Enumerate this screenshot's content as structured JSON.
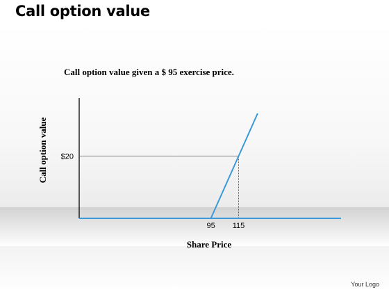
{
  "slide": {
    "title": "Call option value",
    "footer_logo": "Your Logo"
  },
  "chart_data": {
    "type": "line",
    "title": "Call option value given a $ 95 exercise price.",
    "xlabel": "Share Price",
    "ylabel": "Call option value",
    "x_ticks": [
      {
        "value": 95,
        "label": "95"
      },
      {
        "value": 115,
        "label": "115"
      }
    ],
    "y_ticks": [
      {
        "value": 20,
        "label": "$20"
      }
    ],
    "series": [
      {
        "color": "#3a9ad9",
        "points": [
          {
            "x": 95,
            "y": 0
          },
          {
            "x": 115,
            "y": 20
          },
          {
            "x": 128.7,
            "y": 33.7
          }
        ]
      }
    ],
    "baseline": {
      "x_min": 0,
      "x_max": 188.9,
      "y": 0,
      "color": "#3a9ad9"
    },
    "reference": {
      "x": 115,
      "y": 20
    },
    "xlim": [
      0,
      188.9
    ],
    "ylim": [
      0,
      40
    ],
    "grid": false,
    "legend": "none"
  }
}
